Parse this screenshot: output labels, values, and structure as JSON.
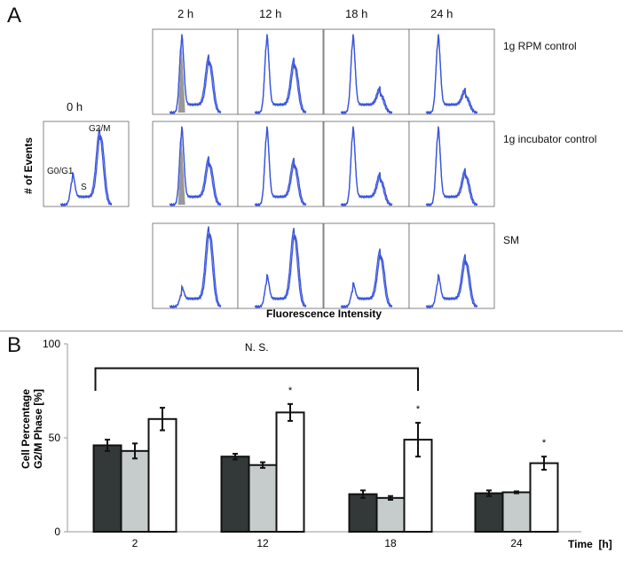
{
  "panel_a": {
    "letter": "A",
    "timepoints": [
      "2 h",
      "12 h",
      "18 h",
      "24 h"
    ],
    "baseline_label": "0 h",
    "conditions": [
      "1g RPM control",
      "1g incubator control",
      "SM"
    ],
    "y_label": "# of Events",
    "x_label": "Fluorescence Intensity",
    "peak_labels": {
      "g1": "G0/G1",
      "s": "S",
      "g2m": "G2/M"
    },
    "line_color": "#3b55d9",
    "histograms": {
      "baseline": {
        "g1": 0.3,
        "g2": 0.85
      },
      "rows": [
        [
          {
            "g1": 0.88,
            "g2": 0.62
          },
          {
            "g1": 0.88,
            "g2": 0.58
          },
          {
            "g1": 0.88,
            "g2": 0.22
          },
          {
            "g1": 0.88,
            "g2": 0.2
          }
        ],
        [
          {
            "g1": 0.88,
            "g2": 0.5
          },
          {
            "g1": 0.88,
            "g2": 0.48
          },
          {
            "g1": 0.88,
            "g2": 0.3
          },
          {
            "g1": 0.88,
            "g2": 0.35
          }
        ],
        [
          {
            "g1": 0.15,
            "g2": 0.9
          },
          {
            "g1": 0.3,
            "g2": 0.88
          },
          {
            "g1": 0.2,
            "g2": 0.62
          },
          {
            "g1": 0.3,
            "g2": 0.55
          }
        ]
      ]
    }
  },
  "chart_data": {
    "type": "bar",
    "panel_letter": "B",
    "categories": [
      "2",
      "12",
      "18",
      "24"
    ],
    "xlabel": "Time  [h]",
    "ylabel_lines": [
      "Cell Percentage",
      "G2/M Phase [%]"
    ],
    "ylim": [
      0,
      100
    ],
    "yticks": [
      "0",
      "50",
      "100"
    ],
    "series": [
      {
        "name": "1g RPM control",
        "color": "#333838",
        "values": [
          46,
          40,
          20,
          20.5
        ],
        "errors": [
          3,
          1.5,
          2,
          1.5
        ]
      },
      {
        "name": "1g incubator control",
        "color": "#c5cccb",
        "values": [
          43,
          35.5,
          18,
          21
        ],
        "errors": [
          4,
          1.5,
          1,
          0.5
        ]
      },
      {
        "name": "SM",
        "color": "#ffffff",
        "values": [
          60,
          63.5,
          49,
          36.5
        ],
        "errors": [
          6,
          4.5,
          9,
          3.5
        ]
      }
    ],
    "significance": [
      {
        "category": "12",
        "series": "SM",
        "label": "*"
      },
      {
        "category": "18",
        "series": "SM",
        "label": "*"
      },
      {
        "category": "24",
        "series": "SM",
        "label": "*"
      }
    ],
    "bracket": {
      "from": "2",
      "to": "18",
      "label": "N. S.",
      "level": 87
    }
  }
}
